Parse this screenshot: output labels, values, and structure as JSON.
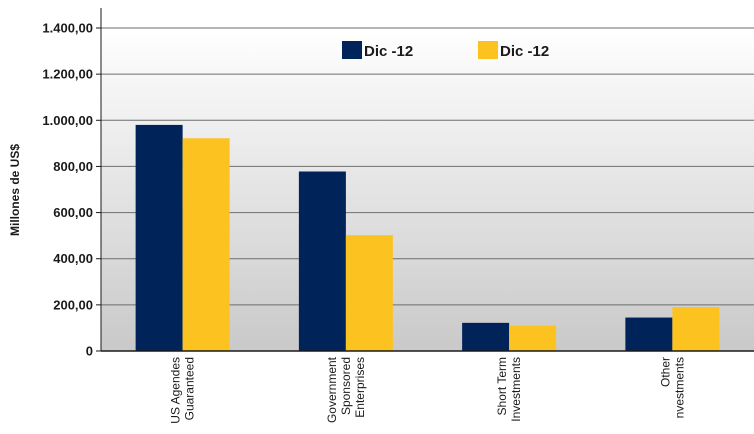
{
  "chart_data": {
    "type": "bar",
    "ylabel": "Millones de US$",
    "xlabel": "",
    "ylim": [
      0,
      1400
    ],
    "yticks": [
      "0",
      "200,00",
      "400,00",
      "600,00",
      "800,00",
      "1.000,00",
      "1.200,00",
      "1.400,00"
    ],
    "ytick_values": [
      0,
      200,
      400,
      600,
      800,
      1000,
      1200,
      1400
    ],
    "categories": [
      [
        "US Agendes",
        "Guaranteed"
      ],
      [
        "Government",
        "Sponsored",
        "Enterprises"
      ],
      [
        "Short Term",
        "Investments"
      ],
      [
        "Other",
        "nvestments"
      ]
    ],
    "series": [
      {
        "name": "Dic -12",
        "color": "#00235a",
        "values": [
          980,
          778,
          122,
          145
        ]
      },
      {
        "name": "Dic -12",
        "color": "#fcc21f",
        "values": [
          922,
          502,
          110,
          190
        ]
      }
    ],
    "legend_position": "top",
    "grid": true,
    "background": "gradient-white-to-grey"
  }
}
